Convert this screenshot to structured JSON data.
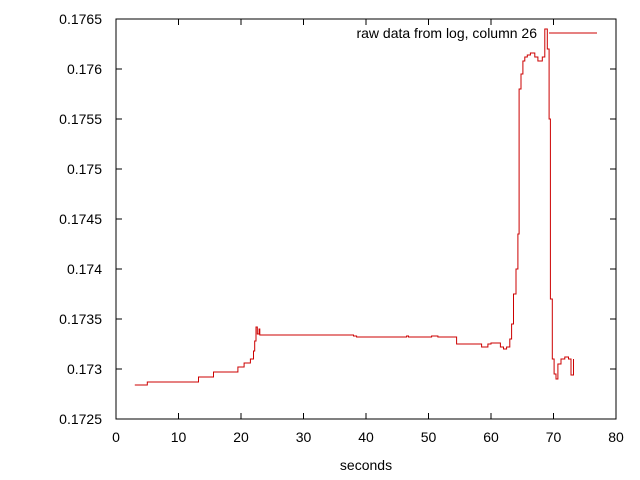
{
  "chart_data": {
    "type": "line",
    "title": "",
    "xlabel": "seconds",
    "ylabel": "",
    "xlim": [
      0,
      80
    ],
    "ylim": [
      0.1725,
      0.1765
    ],
    "x_ticks": [
      0,
      10,
      20,
      30,
      40,
      50,
      60,
      70,
      80
    ],
    "y_ticks": [
      0.1725,
      0.173,
      0.1735,
      0.174,
      0.1745,
      0.175,
      0.1755,
      0.176,
      0.1765
    ],
    "x_tick_labels": [
      "0",
      "10",
      "20",
      "30",
      "40",
      "50",
      "60",
      "70",
      "80"
    ],
    "y_tick_labels": [
      "0.1725",
      "0.173",
      "0.1735",
      "0.174",
      "0.1745",
      "0.175",
      "0.1755",
      "0.176",
      "0.1765"
    ],
    "grid": false,
    "legend_position": "top-right",
    "series": [
      {
        "name": "raw data from log, column 26",
        "color": "#cc0000",
        "step": true,
        "x": [
          3,
          5,
          13,
          13.2,
          15.5,
          15.6,
          18.8,
          19.5,
          20.5,
          21.5,
          22,
          22.2,
          22.4,
          22.6,
          22.9,
          23,
          38,
          38.5,
          39,
          46.5,
          46.8,
          47.2,
          50,
          50.5,
          51.5,
          54.5,
          58,
          58.5,
          59.5,
          60,
          61.5,
          62,
          62.5,
          63,
          63.3,
          63.6,
          64,
          64.3,
          64.5,
          64.8,
          65.1,
          65.4,
          65.8,
          66.3,
          67,
          67.5,
          68.2,
          68.6,
          69,
          69.3,
          69.5,
          69.8,
          70.1,
          70.4,
          70.7,
          71.2,
          71.8,
          72.4,
          72.8,
          73.2
        ],
        "y": [
          0.17284,
          0.17287,
          0.17287,
          0.17292,
          0.17292,
          0.17297,
          0.17297,
          0.17302,
          0.17306,
          0.1731,
          0.17318,
          0.17328,
          0.17342,
          0.17335,
          0.1734,
          0.17334,
          0.17333,
          0.17332,
          0.17332,
          0.17333,
          0.17332,
          0.17332,
          0.17332,
          0.17333,
          0.17332,
          0.17325,
          0.17325,
          0.17322,
          0.17325,
          0.17326,
          0.17322,
          0.1732,
          0.17322,
          0.1733,
          0.17345,
          0.17375,
          0.174,
          0.17435,
          0.1758,
          0.17595,
          0.17608,
          0.17612,
          0.17614,
          0.17616,
          0.17612,
          0.17608,
          0.17612,
          0.1764,
          0.1762,
          0.1755,
          0.1737,
          0.1731,
          0.17295,
          0.1729,
          0.17305,
          0.1731,
          0.17312,
          0.1731,
          0.17294,
          0.1731
        ]
      }
    ]
  }
}
